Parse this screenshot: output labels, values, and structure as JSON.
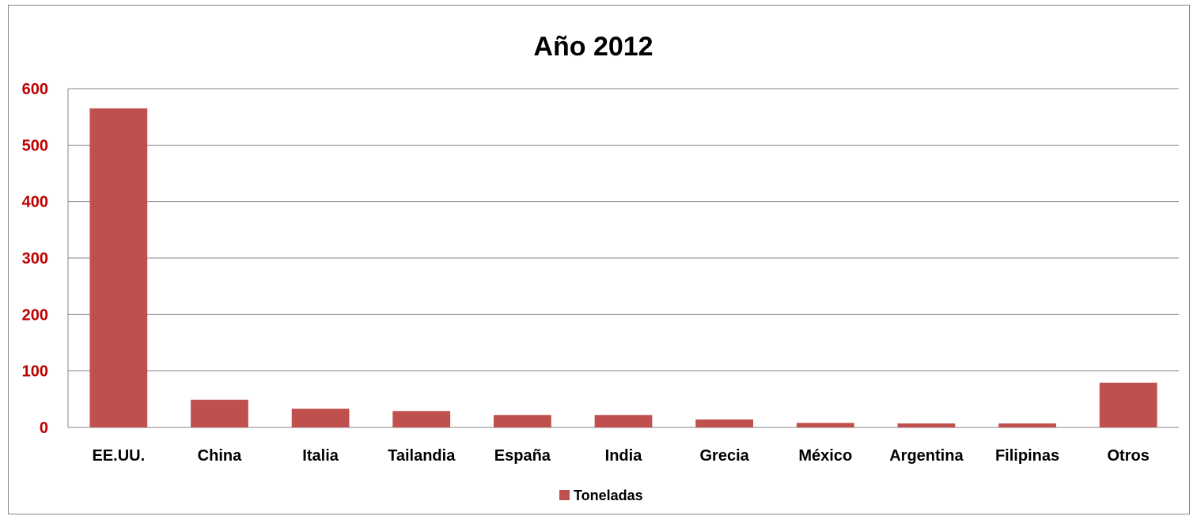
{
  "chart_data": {
    "type": "bar",
    "title": "Año 2012",
    "categories": [
      "EE.UU.",
      "China",
      "Italia",
      "Tailandia",
      "España",
      "India",
      "Grecia",
      "México",
      "Argentina",
      "Filipinas",
      "Otros"
    ],
    "series": [
      {
        "name": "Toneladas",
        "values": [
          565,
          49,
          33,
          29,
          22,
          22,
          14,
          8,
          7,
          7,
          79
        ],
        "color": "#c0504d"
      }
    ],
    "ylim": [
      0,
      600
    ],
    "yticks": [
      "0",
      "100",
      "200",
      "300",
      "400",
      "500",
      "600"
    ],
    "xlabel": "",
    "ylabel": "",
    "grid": true,
    "legend_position": "bottom",
    "colors": {
      "ytick_label": "#c00000",
      "gridline": "#868686"
    }
  }
}
